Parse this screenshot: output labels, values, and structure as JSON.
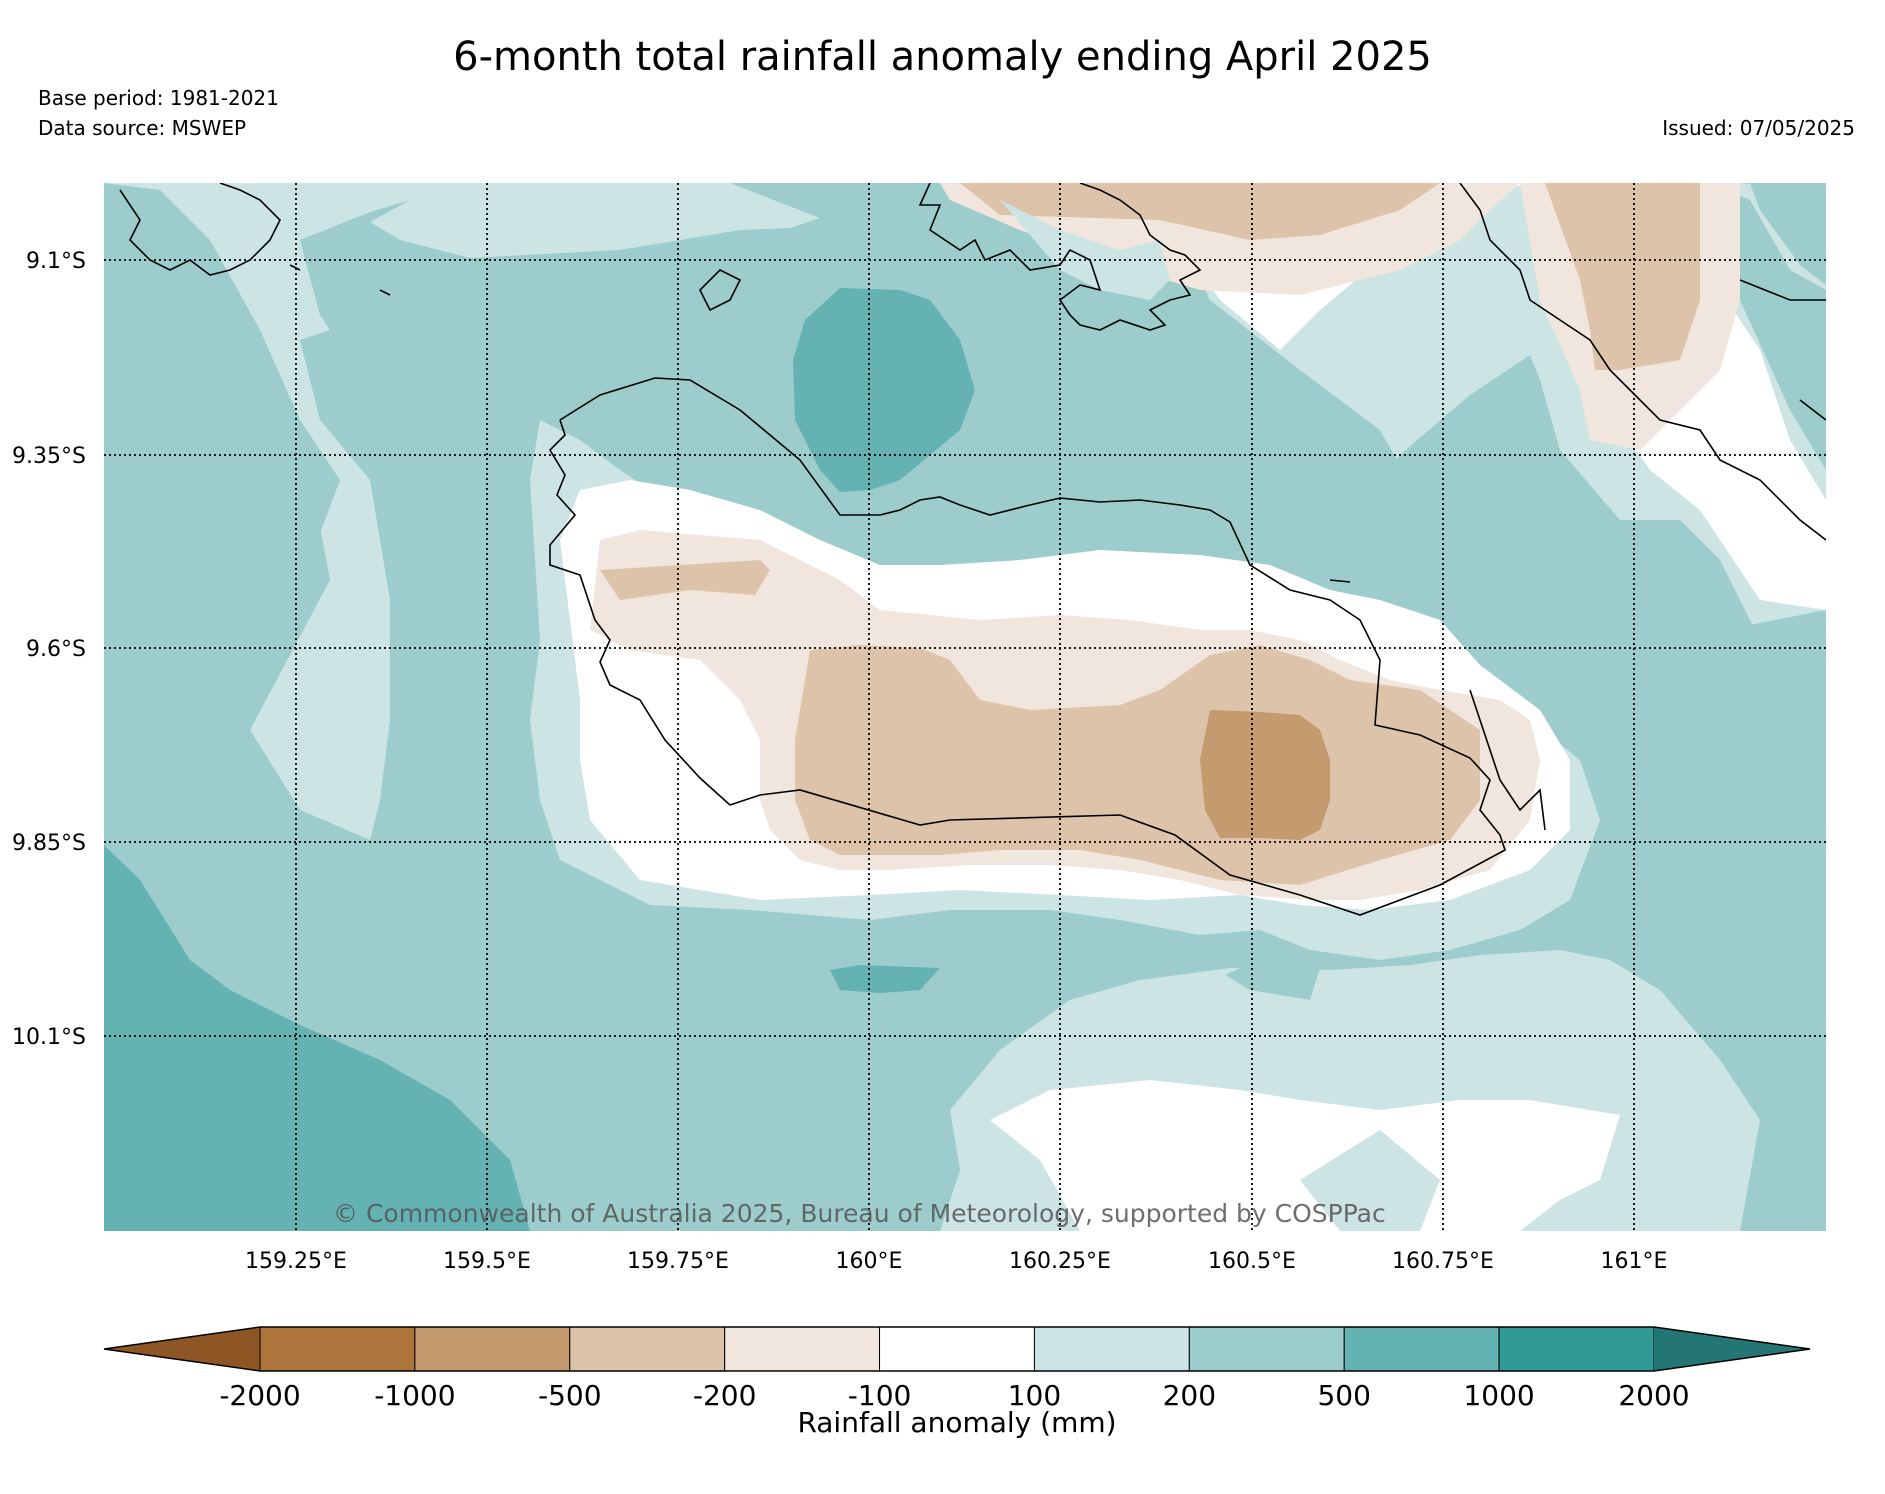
{
  "header": {
    "title": "6-month total rainfall anomaly ending April 2025",
    "base_period": "Base period: 1981-2021",
    "data_source": "Data source: MSWEP",
    "issued": "Issued: 07/05/2025"
  },
  "map": {
    "lat_labels": [
      "9.1°S",
      "9.35°S",
      "9.6°S",
      "9.85°S",
      "10.1°S"
    ],
    "lon_labels": [
      "159.25°E",
      "159.5°E",
      "159.75°E",
      "160°E",
      "160.25°E",
      "160.5°E",
      "160.75°E",
      "161°E"
    ],
    "copyright": "© Commonwealth of Australia 2025, Bureau of Meteorology, supported by COSPPac",
    "grid": "dotted"
  },
  "colorbar": {
    "label": "Rainfall anomaly (mm)",
    "ticks": [
      "-2000",
      "-1000",
      "-500",
      "-200",
      "-100",
      "100",
      "200",
      "500",
      "1000",
      "2000"
    ],
    "colors": [
      "#8e5624",
      "#ad743b",
      "#c49a6f",
      "#dcc3aa",
      "#f1e6dd",
      "#ffffff",
      "#cce5e4",
      "#9ccccc",
      "#65b2b2",
      "#329a96",
      "#237674"
    ]
  }
}
